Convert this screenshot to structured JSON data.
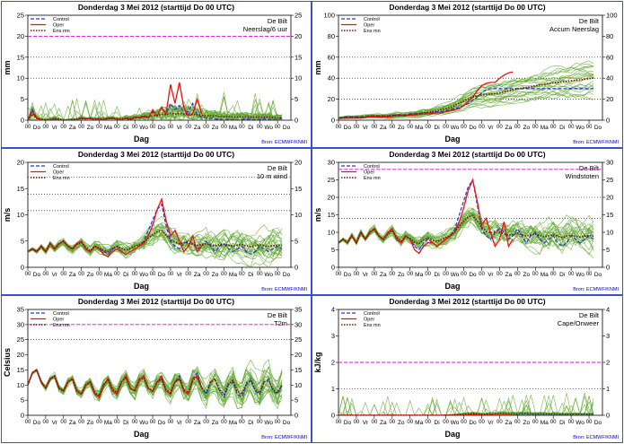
{
  "colors": {
    "member": "#5fa830",
    "control": "#2233dd",
    "oper": "#ee1111",
    "ensmean": "#7a1500",
    "threshold": "#ee00ee",
    "frame": "#3b4fd0"
  },
  "common": {
    "title": "Donderdag  3 Mei       2012  (starttijd   Do 00 UTC)",
    "station": "De Bilt",
    "xlabel": "Dag",
    "source": "Bron: ECMWF/KNMI",
    "legend": [
      "Control",
      "Oper",
      "Ens mn"
    ],
    "days": [
      "Do",
      "Vr",
      "Za",
      "Zo",
      "Ma",
      "Di",
      "Wo",
      "Do",
      "Vr",
      "Za",
      "Zo",
      "Ma",
      "Di",
      "Wo",
      "Do"
    ],
    "hour_tick_label": "00"
  },
  "chart_data": [
    {
      "type": "line",
      "variable": "Neerslag/6 uur",
      "ylabel": "mm",
      "ylim": [
        0,
        25
      ],
      "yticks": [
        0,
        5,
        10,
        15,
        20,
        25
      ],
      "dotted_lines": [
        10,
        15
      ],
      "threshold": 20,
      "x_days": 15,
      "series": [
        {
          "name": "Control",
          "values": [
            0,
            2.5,
            0.5,
            0,
            0,
            0,
            0.3,
            0,
            0,
            0,
            0.2,
            0,
            0.5,
            0.3,
            0.5,
            0,
            0.3,
            0,
            0.5,
            0.5,
            0.2,
            0,
            0.5,
            0,
            0.8,
            0.5,
            1.2,
            0.5,
            2,
            1,
            3,
            1.5,
            4,
            2.5,
            3.5,
            2,
            2,
            4,
            1.2,
            0.8,
            0.5,
            0.5,
            0.3,
            0.2,
            0.1,
            0.2,
            0.1,
            0,
            0.2,
            0.3,
            0.2,
            0.1,
            0.2,
            0.3,
            0.2,
            0.1,
            0.2,
            0.3
          ]
        },
        {
          "name": "Oper",
          "values": [
            0,
            2,
            0.5,
            0,
            0,
            0,
            0.2,
            0,
            0,
            0,
            0.1,
            0,
            0.6,
            0.3,
            0.4,
            0,
            0.3,
            0,
            0.4,
            0.6,
            0.2,
            0,
            0.5,
            0.2,
            0.8,
            0.5,
            1,
            0.5,
            2.5,
            1,
            3,
            1.5,
            8.5,
            4,
            9,
            3,
            1,
            1.5,
            5,
            1.5
          ]
        },
        {
          "name": "Ens mn",
          "values": [
            0,
            1.5,
            0.5,
            0.2,
            0.1,
            0.2,
            0.4,
            0.2,
            0.1,
            0.1,
            0.2,
            0.2,
            0.4,
            0.3,
            0.4,
            0.3,
            0.3,
            0.3,
            0.4,
            0.4,
            0.3,
            0.3,
            0.5,
            0.4,
            0.6,
            0.6,
            0.8,
            0.8,
            1.1,
            1.1,
            1.4,
            1.3,
            1.6,
            1.5,
            1.6,
            1.5,
            1.5,
            1.4,
            1.3,
            1.2,
            1.1,
            1,
            1,
            0.9,
            0.9,
            0.9,
            0.8,
            0.8,
            0.8,
            0.8,
            0.7,
            0.7,
            0.7,
            0.7,
            0.7,
            0.6,
            0.6,
            0.6
          ]
        }
      ]
    },
    {
      "type": "line",
      "variable": "Accum Neerslag",
      "ylabel": "mm",
      "ylim": [
        0,
        100
      ],
      "yticks": [
        0,
        20,
        40,
        60,
        80,
        100
      ],
      "dotted_lines": [
        20,
        40,
        60
      ],
      "threshold": null,
      "x_days": 15,
      "series": [
        {
          "name": "Control",
          "values": [
            2,
            3,
            3,
            3,
            3,
            3,
            3.5,
            4,
            4,
            4,
            4,
            4,
            4.5,
            5,
            5,
            5,
            6,
            6,
            6.5,
            7,
            7,
            7,
            8,
            8,
            9,
            10,
            11,
            12,
            14,
            16,
            19,
            22,
            26,
            29,
            30,
            30,
            30,
            30,
            30,
            30,
            30,
            30,
            30,
            30,
            30,
            30,
            30,
            30,
            30,
            30,
            30,
            30,
            30,
            30,
            30,
            30,
            30,
            30
          ]
        },
        {
          "name": "Oper",
          "values": [
            2,
            2,
            2,
            2,
            2,
            2,
            2.5,
            3,
            3,
            3,
            3,
            3,
            3.5,
            4,
            4,
            4,
            5,
            5,
            5.5,
            6,
            6,
            6,
            7,
            7,
            8,
            9,
            10,
            11,
            14,
            18,
            22,
            28,
            33,
            35,
            36,
            36,
            40,
            43,
            45,
            46
          ]
        },
        {
          "name": "Ens mn",
          "values": [
            2,
            2.5,
            3,
            3,
            3,
            3,
            3.5,
            4,
            4,
            4,
            4,
            4,
            4.5,
            5,
            5,
            5,
            5.5,
            6,
            6.5,
            7,
            7.5,
            8,
            9,
            10,
            11,
            12,
            14,
            16,
            18,
            20,
            22,
            23,
            24,
            24.5,
            25,
            25.5,
            26,
            27,
            28,
            29,
            30,
            30.5,
            31,
            32,
            33,
            33.5,
            34,
            35,
            35.5,
            36,
            36.5,
            37,
            37.5,
            38,
            38.5,
            39,
            39.5,
            40
          ]
        }
      ]
    },
    {
      "type": "line",
      "variable": "10 m wind",
      "ylabel": "m/s",
      "ylim": [
        0,
        20
      ],
      "yticks": [
        0,
        5,
        10,
        15,
        20
      ],
      "dotted_lines": [
        10.8,
        13.9,
        17.2
      ],
      "threshold": null,
      "x_days": 15,
      "series": [
        {
          "name": "Control",
          "values": [
            3,
            3.5,
            3,
            4,
            3,
            4.5,
            3.5,
            4.5,
            5,
            4,
            3.5,
            4.5,
            5,
            3.5,
            3,
            4,
            3.5,
            3,
            2.5,
            3.5,
            4,
            3,
            2.5,
            3,
            3.5,
            4,
            5,
            7,
            9,
            11,
            12,
            8,
            5,
            4,
            3.5,
            4.5,
            5,
            4.5,
            3.5,
            4,
            5,
            4,
            3,
            4,
            4.5,
            3.5,
            3,
            3.5,
            4,
            3,
            2.5,
            3,
            4,
            3.5,
            3,
            3.5,
            4,
            3.5
          ]
        },
        {
          "name": "Oper",
          "values": [
            3,
            3.5,
            3,
            4,
            3,
            4.5,
            3.5,
            4.5,
            5,
            4,
            3.5,
            4.5,
            5,
            3.5,
            3,
            4,
            3.5,
            2.5,
            2,
            3,
            3.5,
            3,
            2.5,
            3,
            3.5,
            4,
            4.5,
            6,
            8,
            11,
            13,
            9,
            6,
            7,
            5,
            3,
            4,
            6,
            3,
            4
          ]
        },
        {
          "name": "Ens mn",
          "values": [
            3,
            3.5,
            3,
            4,
            3,
            4.5,
            3.5,
            4.5,
            5,
            4,
            3.5,
            4.3,
            4.8,
            3.8,
            3.2,
            4,
            3.7,
            3.2,
            3,
            3.6,
            4,
            3.6,
            3.3,
            3.6,
            4,
            4.3,
            4.8,
            5.5,
            6.2,
            6.8,
            7,
            6.2,
            5.3,
            4.8,
            4.5,
            4.7,
            4.6,
            4.4,
            4.2,
            4.3,
            4.5,
            4.3,
            4.1,
            4.3,
            4.4,
            4.2,
            4,
            4.2,
            4.3,
            4.1,
            3.9,
            4.1,
            4.3,
            4.1,
            4,
            4.1,
            4.2,
            4.1
          ]
        }
      ]
    },
    {
      "type": "line",
      "variable": "Windstoten",
      "ylabel": "m/s",
      "ylim": [
        0,
        30
      ],
      "yticks": [
        0,
        5,
        10,
        15,
        20,
        25,
        30
      ],
      "dotted_lines": [
        14,
        20
      ],
      "threshold": 28,
      "x_days": 15,
      "series": [
        {
          "name": "Control",
          "values": [
            7,
            8,
            7,
            9,
            7,
            10,
            8,
            10,
            11,
            9,
            8,
            10,
            11,
            8,
            7,
            9,
            8,
            6,
            5,
            7,
            8,
            7,
            6,
            7,
            8,
            9,
            11,
            15,
            19,
            23,
            25,
            18,
            11,
            9,
            8,
            10,
            11,
            10,
            8,
            9,
            11,
            9,
            7,
            9,
            10,
            8,
            7,
            8,
            9,
            7,
            6,
            7,
            9,
            8,
            7,
            8,
            9,
            8
          ]
        },
        {
          "name": "Oper",
          "values": [
            7,
            8,
            7,
            9,
            7,
            10,
            8,
            10,
            11,
            9,
            8,
            10,
            11,
            8,
            7,
            9,
            8,
            5,
            4,
            6,
            7,
            7,
            6,
            7,
            8,
            9,
            10,
            13,
            17,
            22,
            25,
            19,
            12,
            14,
            10,
            6,
            8,
            13,
            6,
            8
          ]
        },
        {
          "name": "Ens mn",
          "values": [
            7,
            8,
            7,
            9,
            7,
            10,
            8,
            10,
            11,
            9,
            8,
            9.5,
            10.5,
            8.5,
            7.5,
            8.8,
            8.2,
            7.2,
            6.8,
            7.8,
            8.4,
            7.8,
            7.4,
            7.9,
            8.5,
            9.2,
            10.3,
            11.8,
            13.2,
            14.4,
            14.8,
            13.2,
            11.4,
            10.4,
            9.8,
            10.2,
            10,
            9.6,
            9.2,
            9.4,
            9.8,
            9.3,
            8.9,
            9.3,
            9.5,
            9.1,
            8.7,
            9.1,
            9.3,
            8.9,
            8.5,
            8.9,
            9.2,
            8.9,
            8.6,
            8.9,
            9.1,
            8.9
          ]
        }
      ]
    },
    {
      "type": "line",
      "variable": "T2m",
      "ylabel": "Celsius",
      "ylim": [
        0,
        35
      ],
      "yticks": [
        0,
        5,
        10,
        15,
        20,
        25,
        30,
        35
      ],
      "dotted_lines": [
        25
      ],
      "threshold": 30,
      "x_days": 15,
      "series": [
        {
          "name": "Control",
          "values": [
            10,
            14,
            15,
            11,
            9,
            12,
            13,
            9,
            8,
            11,
            12,
            8,
            7,
            10,
            11,
            7,
            6,
            10,
            12,
            8,
            7,
            11,
            13,
            9,
            8,
            12,
            13,
            9,
            8,
            11,
            12,
            8,
            7,
            11,
            13,
            8,
            7,
            12,
            14,
            9,
            7,
            11,
            12,
            8,
            6,
            10,
            11,
            7,
            6,
            10,
            12,
            8,
            7,
            11,
            12,
            8,
            7,
            10
          ]
        },
        {
          "name": "Oper",
          "values": [
            10,
            14,
            15,
            11,
            9,
            12,
            13,
            9,
            8,
            11,
            12,
            8,
            7,
            10,
            11,
            7,
            6,
            10,
            12,
            8,
            7,
            11,
            13,
            9,
            8,
            12,
            13,
            9,
            8,
            11,
            13,
            8,
            7,
            11,
            12,
            8,
            7,
            12,
            13,
            9
          ]
        },
        {
          "name": "Ens mn",
          "values": [
            10,
            14,
            15,
            11,
            9,
            12,
            13,
            9,
            8,
            11,
            12,
            8,
            7,
            10,
            11,
            7.5,
            6.5,
            10,
            12,
            8.5,
            7.5,
            11,
            12.5,
            9,
            8,
            11.5,
            12.5,
            9,
            8,
            11,
            12,
            8.5,
            7.5,
            11,
            12,
            8.5,
            7.5,
            11.5,
            12.5,
            9,
            7.5,
            11,
            12,
            8.5,
            7,
            10.5,
            11.5,
            8,
            7,
            10.5,
            11.5,
            8.5,
            7.5,
            11,
            11.5,
            8.5,
            7.5,
            10
          ]
        }
      ]
    },
    {
      "type": "line",
      "variable": "Cape/Onweer",
      "ylabel": "kJ/kg",
      "ylim": [
        0,
        4
      ],
      "yticks": [
        0,
        1,
        2,
        3,
        4
      ],
      "dotted_lines": [
        1
      ],
      "threshold": 2,
      "x_days": 15,
      "series": [
        {
          "name": "Control",
          "values": [
            0,
            0,
            0,
            0,
            0,
            0,
            0,
            0,
            0,
            0,
            0,
            0,
            0,
            0,
            0,
            0,
            0,
            0,
            0,
            0,
            0,
            0,
            0,
            0,
            0,
            0,
            0,
            0,
            0,
            0,
            0.05,
            0,
            0,
            0,
            0.02,
            0,
            0,
            0,
            0,
            0,
            0,
            0,
            0,
            0,
            0,
            0,
            0,
            0,
            0,
            0,
            0,
            0,
            0,
            0,
            0,
            0,
            0,
            0
          ]
        },
        {
          "name": "Oper",
          "values": [
            0,
            0,
            0,
            0,
            0,
            0,
            0,
            0,
            0,
            0,
            0,
            0,
            0,
            0,
            0,
            0,
            0,
            0,
            0,
            0,
            0,
            0,
            0,
            0,
            0,
            0,
            0,
            0,
            0,
            0,
            0.02,
            0,
            0,
            0,
            0,
            0,
            0,
            0,
            0,
            0
          ]
        },
        {
          "name": "Ens mn",
          "values": [
            0,
            0,
            0,
            0,
            0,
            0,
            0,
            0,
            0,
            0,
            0,
            0,
            0,
            0,
            0,
            0,
            0,
            0,
            0,
            0,
            0,
            0,
            0,
            0,
            0.01,
            0.01,
            0.02,
            0.03,
            0.04,
            0.05,
            0.06,
            0.05,
            0.04,
            0.04,
            0.05,
            0.05,
            0.06,
            0.06,
            0.05,
            0.05,
            0.05,
            0.06,
            0.06,
            0.05,
            0.05,
            0.05,
            0.05,
            0.04,
            0.05,
            0.04,
            0.04,
            0.04,
            0.04,
            0.04,
            0.04,
            0.04,
            0.04,
            0.04
          ]
        }
      ]
    }
  ]
}
